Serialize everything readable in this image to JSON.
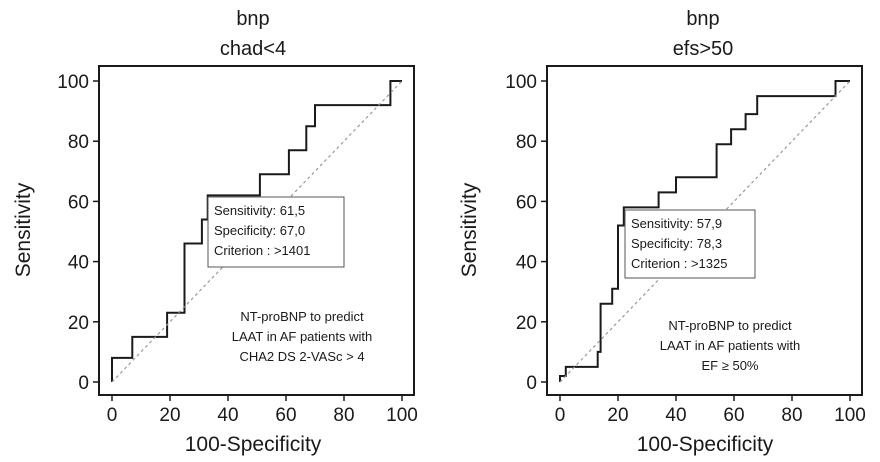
{
  "chart_data": [
    {
      "type": "line",
      "title": [
        "bnp",
        "chad<4"
      ],
      "xlabel": "100-Specificity",
      "ylabel": "Sensitivity",
      "xlim": [
        0,
        100
      ],
      "ylim": [
        0,
        100
      ],
      "xticks": [
        "0",
        "20",
        "40",
        "60",
        "80",
        "100"
      ],
      "yticks": [
        "0",
        "20",
        "40",
        "60",
        "80",
        "100"
      ],
      "grid": false,
      "series": [
        {
          "x": [
            0,
            0,
            7,
            7,
            19,
            19,
            25,
            25,
            31,
            31,
            33,
            33,
            51,
            51,
            61,
            61,
            67,
            67,
            70,
            70,
            96,
            96,
            100
          ],
          "y": [
            0,
            8,
            8,
            15,
            15,
            23,
            23,
            46,
            46,
            54,
            54,
            62,
            62,
            69,
            69,
            77,
            77,
            85,
            85,
            92,
            92,
            100,
            100
          ],
          "style": "step",
          "color": "#1a1a1a"
        },
        {
          "x": [
            0,
            100
          ],
          "y": [
            0,
            100
          ],
          "style": "dashed",
          "color": "#999999"
        }
      ],
      "criterion_box": {
        "lines": [
          "Sensitivity: 61,5",
          "Specificity: 67,0",
          "Criterion : >1401"
        ],
        "point": [
          33,
          61.5
        ]
      },
      "annotation": [
        "NT-proBNP to predict",
        "LAAT in AF patients with",
        "CHA2 DS 2-VASc > 4"
      ]
    },
    {
      "type": "line",
      "title": [
        "bnp",
        "efs>50"
      ],
      "xlabel": "100-Specificity",
      "ylabel": "Sensitivity",
      "xlim": [
        0,
        100
      ],
      "ylim": [
        0,
        100
      ],
      "xticks": [
        "0",
        "20",
        "40",
        "60",
        "80",
        "100"
      ],
      "yticks": [
        "0",
        "20",
        "40",
        "60",
        "80",
        "100"
      ],
      "grid": false,
      "series": [
        {
          "x": [
            0,
            0,
            2,
            2,
            13,
            13,
            14,
            14,
            18,
            18,
            20,
            20,
            22,
            22,
            34,
            34,
            40,
            40,
            54,
            54,
            59,
            59,
            64,
            64,
            68,
            68,
            95,
            95,
            100
          ],
          "y": [
            0,
            2,
            2,
            5,
            5,
            10,
            10,
            26,
            26,
            31,
            31,
            52,
            52,
            58,
            58,
            63,
            63,
            68,
            68,
            79,
            79,
            84,
            84,
            89,
            89,
            95,
            95,
            100,
            100
          ],
          "style": "step",
          "color": "#1a1a1a"
        },
        {
          "x": [
            0,
            100
          ],
          "y": [
            0,
            100
          ],
          "style": "dashed",
          "color": "#999999"
        }
      ],
      "criterion_box": {
        "lines": [
          "Sensitivity: 57,9",
          "Specificity: 78,3",
          "Criterion : >1325"
        ],
        "point": [
          22,
          57.9
        ]
      },
      "annotation": [
        "NT-proBNP to predict",
        "LAAT in AF patients with",
        "EF ≥ 50%"
      ]
    }
  ]
}
